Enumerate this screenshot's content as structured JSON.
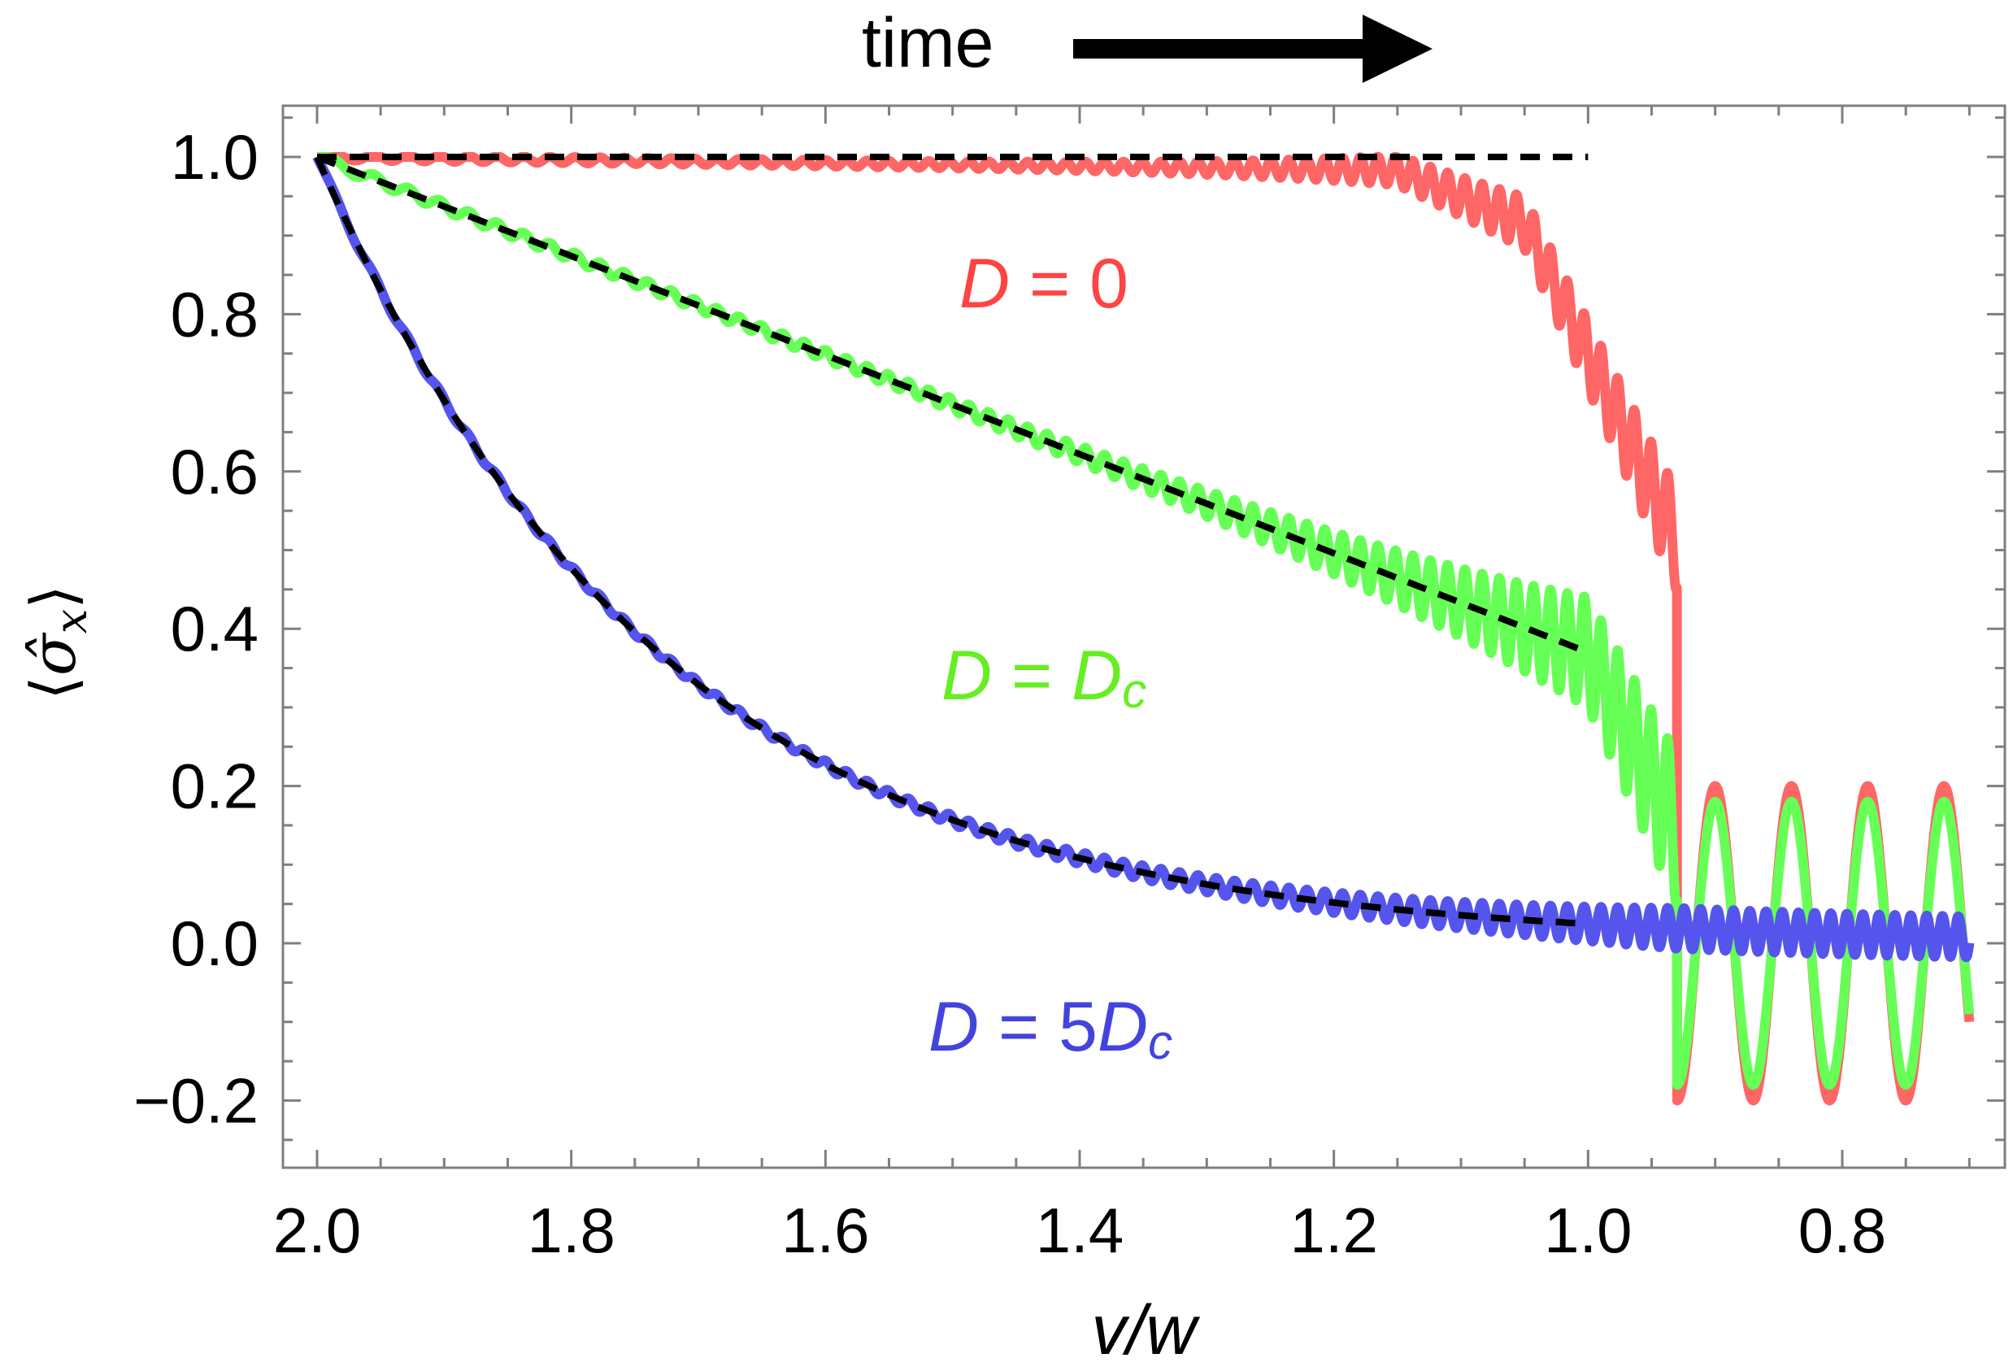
{
  "chart_data": {
    "type": "line",
    "title": "",
    "annotation": {
      "time_label": "time",
      "time_arrow": "right"
    },
    "xlabel": "v/w",
    "ylabel": "⟨σ̂x⟩",
    "ylabel_parts": {
      "open": "⟨",
      "symbol": "σ̂",
      "subscript": "x",
      "close": "⟩"
    },
    "x_reversed": true,
    "xlim": [
      2.0,
      0.7
    ],
    "ylim": [
      -0.25,
      1.1
    ],
    "xticks": [
      2.0,
      1.8,
      1.6,
      1.4,
      1.2,
      1.0,
      0.8
    ],
    "xtick_labels": [
      "2.0",
      "1.8",
      "1.6",
      "1.4",
      "1.2",
      "1.0",
      "0.8"
    ],
    "yticks": [
      1.0,
      0.8,
      0.6,
      0.4,
      0.2,
      0.0,
      -0.2
    ],
    "ytick_labels": [
      "1.0",
      "0.8",
      "0.6",
      "0.4",
      "0.2",
      "0.0",
      "−0.2"
    ],
    "grid": false,
    "series": [
      {
        "name": "D = 0",
        "label_parts": [
          "D",
          " = 0"
        ],
        "color": "#ff6666",
        "adiabatic_guide": {
          "from": 2.0,
          "to": 1.0,
          "type": "constant",
          "value": 1.0
        },
        "oscillation": {
          "ends_at": 0.7,
          "bulk_drop_at": 0.93,
          "late_amplitude": 0.23
        }
      },
      {
        "name": "D = Dc",
        "label_parts": [
          "D",
          " = ",
          "D",
          "c"
        ],
        "color": "#66ff55",
        "adiabatic_guide": {
          "from": 2.0,
          "to": 1.0,
          "type": "decay",
          "end_value": 0.37
        },
        "oscillation": {
          "ends_at": 0.7,
          "bulk_drop_at": 0.93,
          "late_amplitude": 0.2
        }
      },
      {
        "name": "D = 5Dc",
        "label_parts": [
          "D",
          " = 5",
          "D",
          "c"
        ],
        "color": "#5555ee",
        "adiabatic_guide": {
          "from": 2.0,
          "to": 1.0,
          "type": "exponential-decay",
          "end_value": 0.0
        },
        "oscillation": {
          "ends_at": 0.7,
          "late_amplitude": 0.03
        }
      }
    ],
    "guide_style": "black dashed"
  }
}
